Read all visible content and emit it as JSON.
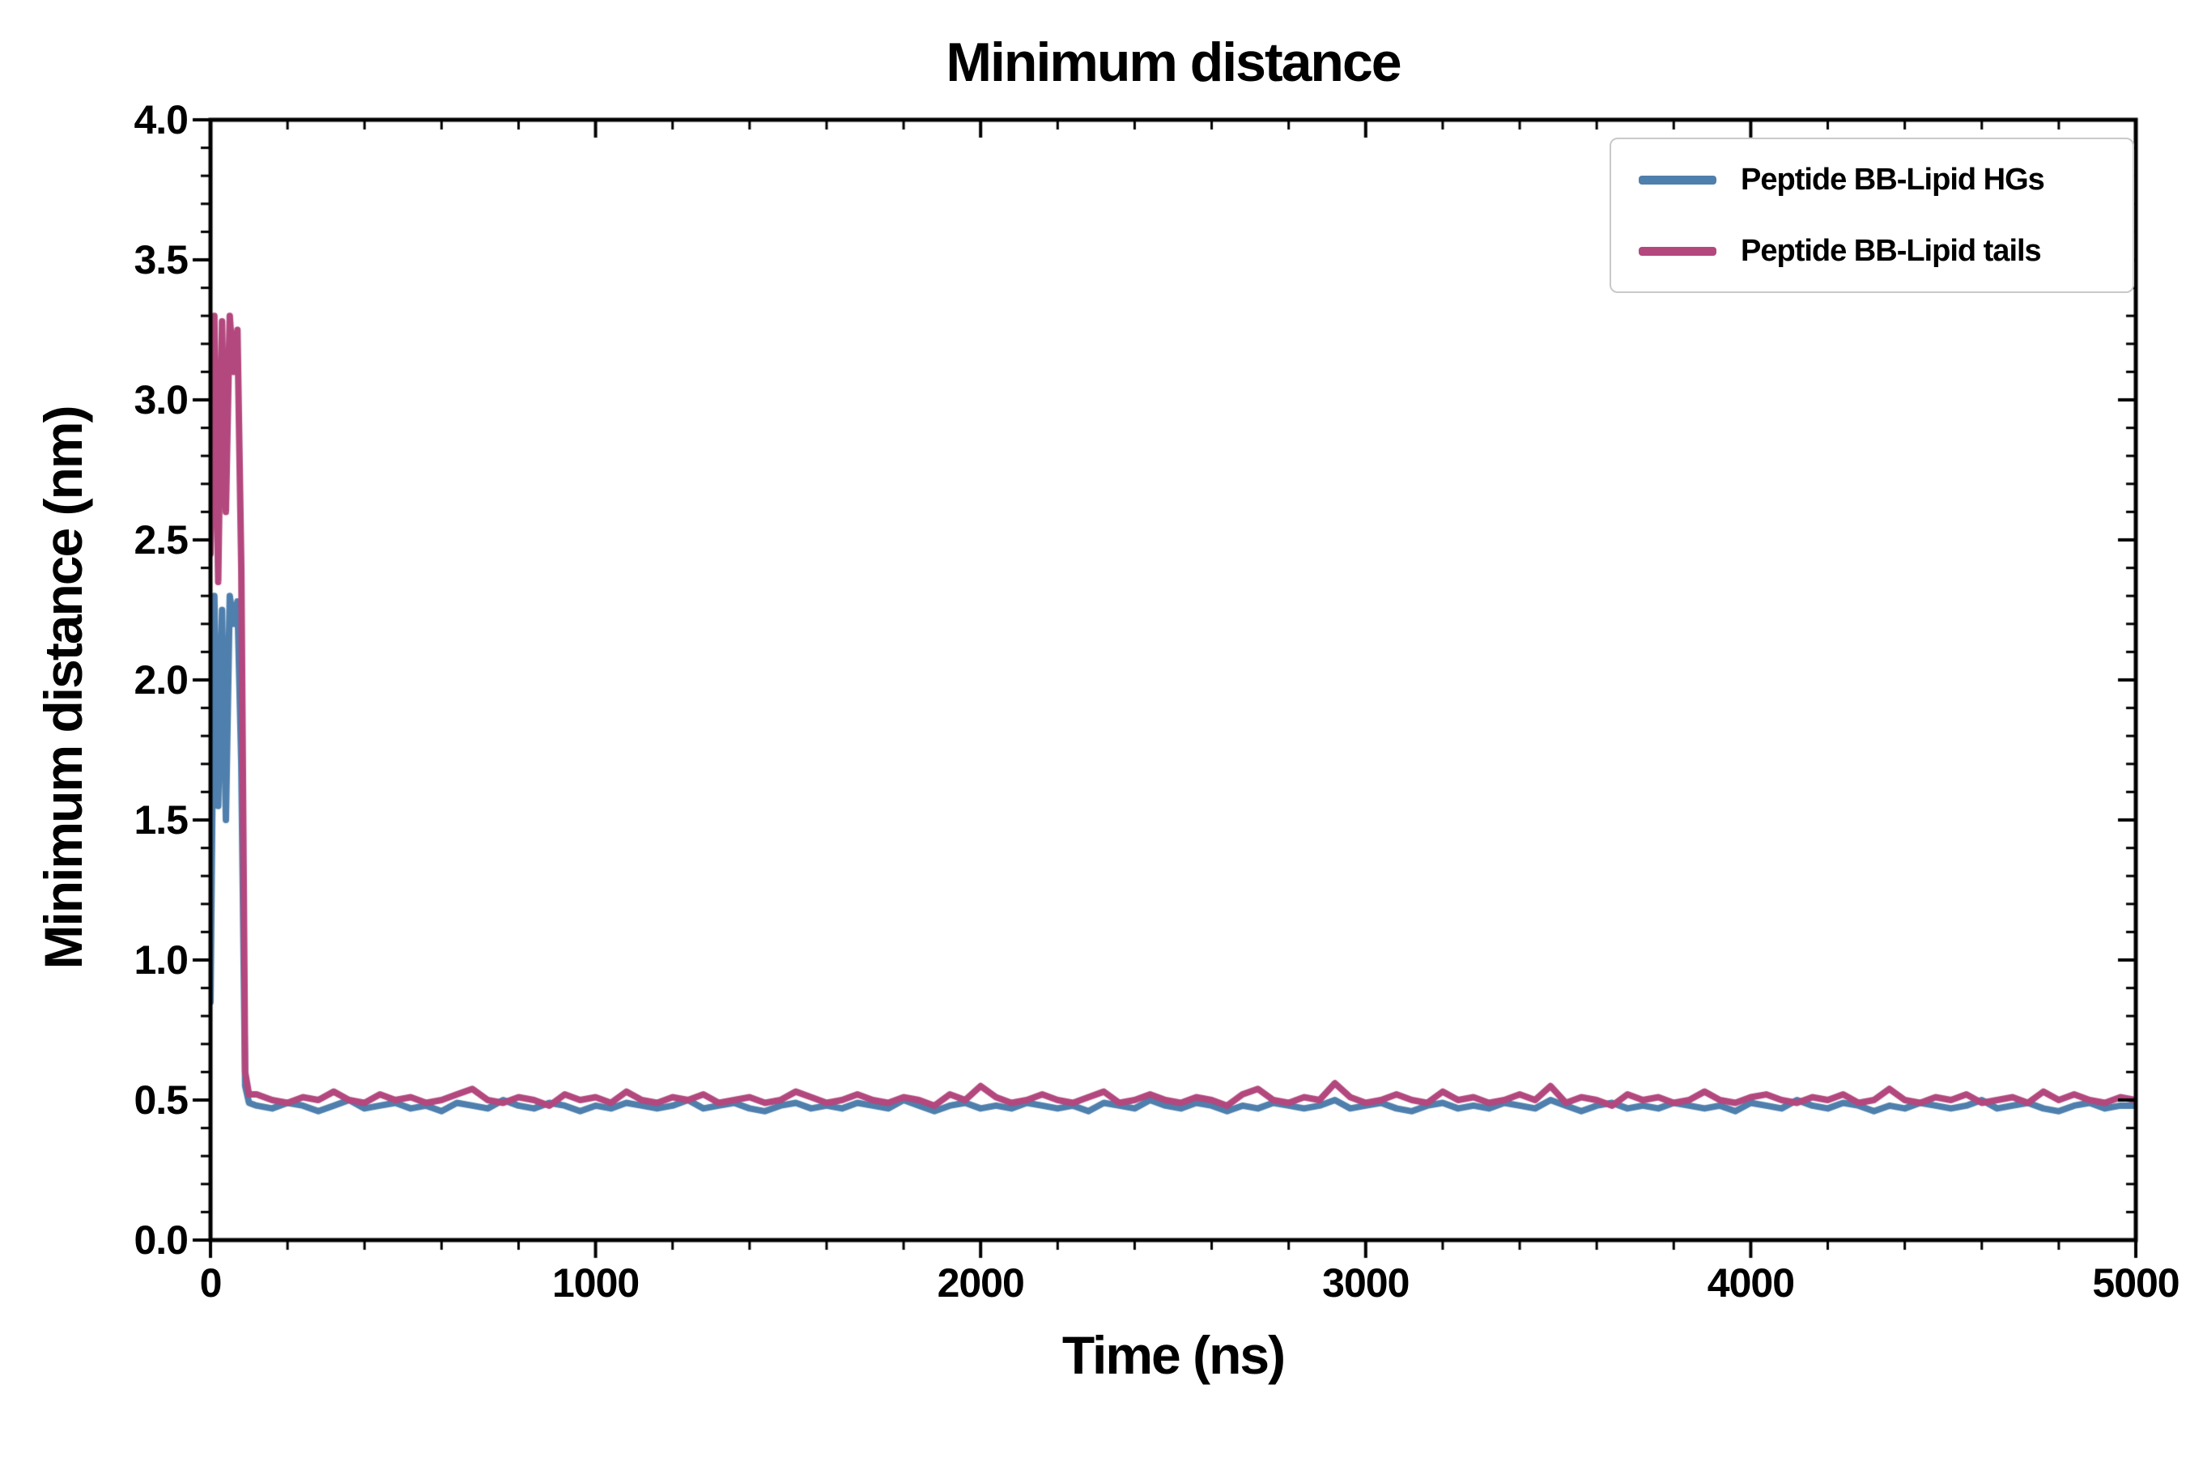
{
  "chart_data": {
    "type": "line",
    "title": "Minimum distance",
    "xlabel": "Time (ns)",
    "ylabel": "Minimum distance (nm)",
    "xlim": [
      0,
      5000
    ],
    "ylim": [
      0.0,
      4.0
    ],
    "grid": false,
    "legend_position": "upper right",
    "axis_color": "#000000",
    "background": "#ffffff",
    "legend_border_color": "#c9c9c9",
    "xticks": {
      "values": [
        0,
        1000,
        2000,
        3000,
        4000,
        5000
      ],
      "labels": [
        "0",
        "1000",
        "2000",
        "3000",
        "4000",
        "5000"
      ]
    },
    "yticks": {
      "values": [
        0,
        0.5,
        1,
        1.5,
        2,
        2.5,
        3,
        3.5,
        4
      ],
      "labels": [
        "0.0",
        "0.5",
        "1.0",
        "1.5",
        "2.0",
        "2.5",
        "3.0",
        "3.5",
        "4.0"
      ]
    },
    "x_minor_step": 200,
    "y_minor_step": 0.1,
    "x": [
      0,
      10,
      20,
      30,
      40,
      50,
      60,
      70,
      80,
      90,
      100,
      120,
      160,
      200,
      240,
      280,
      320,
      360,
      400,
      440,
      480,
      520,
      560,
      600,
      640,
      680,
      720,
      760,
      800,
      840,
      880,
      920,
      960,
      1000,
      1040,
      1080,
      1120,
      1160,
      1200,
      1240,
      1280,
      1320,
      1360,
      1400,
      1440,
      1480,
      1520,
      1560,
      1600,
      1640,
      1680,
      1720,
      1760,
      1800,
      1840,
      1880,
      1920,
      1960,
      2000,
      2040,
      2080,
      2120,
      2160,
      2200,
      2240,
      2280,
      2320,
      2360,
      2400,
      2440,
      2480,
      2520,
      2560,
      2600,
      2640,
      2680,
      2720,
      2760,
      2800,
      2840,
      2880,
      2920,
      2960,
      3000,
      3040,
      3080,
      3120,
      3160,
      3200,
      3240,
      3280,
      3320,
      3360,
      3400,
      3440,
      3480,
      3520,
      3560,
      3600,
      3640,
      3680,
      3720,
      3760,
      3800,
      3840,
      3880,
      3920,
      3960,
      4000,
      4040,
      4080,
      4120,
      4160,
      4200,
      4240,
      4280,
      4320,
      4360,
      4400,
      4440,
      4480,
      4520,
      4560,
      4600,
      4640,
      4680,
      4720,
      4760,
      4800,
      4840,
      4880,
      4920,
      4960,
      5000
    ],
    "series": [
      {
        "name": "Peptide BB-Lipid HGs",
        "color": "#4f7fad",
        "values": [
          0.85,
          2.3,
          1.55,
          2.25,
          1.5,
          2.3,
          2.2,
          2.28,
          1.7,
          0.55,
          0.49,
          0.48,
          0.47,
          0.49,
          0.48,
          0.46,
          0.48,
          0.5,
          0.47,
          0.48,
          0.49,
          0.47,
          0.48,
          0.46,
          0.49,
          0.48,
          0.47,
          0.5,
          0.48,
          0.47,
          0.49,
          0.48,
          0.46,
          0.48,
          0.47,
          0.49,
          0.48,
          0.47,
          0.48,
          0.5,
          0.47,
          0.48,
          0.49,
          0.47,
          0.46,
          0.48,
          0.49,
          0.47,
          0.48,
          0.47,
          0.49,
          0.48,
          0.47,
          0.5,
          0.48,
          0.46,
          0.48,
          0.49,
          0.47,
          0.48,
          0.47,
          0.49,
          0.48,
          0.47,
          0.48,
          0.46,
          0.49,
          0.48,
          0.47,
          0.5,
          0.48,
          0.47,
          0.49,
          0.48,
          0.46,
          0.48,
          0.47,
          0.49,
          0.48,
          0.47,
          0.48,
          0.5,
          0.47,
          0.48,
          0.49,
          0.47,
          0.46,
          0.48,
          0.49,
          0.47,
          0.48,
          0.47,
          0.49,
          0.48,
          0.47,
          0.5,
          0.48,
          0.46,
          0.48,
          0.49,
          0.47,
          0.48,
          0.47,
          0.49,
          0.48,
          0.47,
          0.48,
          0.46,
          0.49,
          0.48,
          0.47,
          0.5,
          0.48,
          0.47,
          0.49,
          0.48,
          0.46,
          0.48,
          0.47,
          0.49,
          0.48,
          0.47,
          0.48,
          0.5,
          0.47,
          0.48,
          0.49,
          0.47,
          0.46,
          0.48,
          0.49,
          0.47,
          0.48,
          0.48
        ]
      },
      {
        "name": "Peptide BB-Lipid tails",
        "color": "#b3487e",
        "values": [
          2.45,
          3.3,
          2.35,
          3.28,
          2.6,
          3.3,
          3.1,
          3.25,
          2.4,
          0.6,
          0.52,
          0.52,
          0.5,
          0.49,
          0.51,
          0.5,
          0.53,
          0.5,
          0.49,
          0.52,
          0.5,
          0.51,
          0.49,
          0.5,
          0.52,
          0.54,
          0.5,
          0.49,
          0.51,
          0.5,
          0.48,
          0.52,
          0.5,
          0.51,
          0.49,
          0.53,
          0.5,
          0.49,
          0.51,
          0.5,
          0.52,
          0.49,
          0.5,
          0.51,
          0.49,
          0.5,
          0.53,
          0.51,
          0.49,
          0.5,
          0.52,
          0.5,
          0.49,
          0.51,
          0.5,
          0.48,
          0.52,
          0.5,
          0.55,
          0.51,
          0.49,
          0.5,
          0.52,
          0.5,
          0.49,
          0.51,
          0.53,
          0.49,
          0.5,
          0.52,
          0.5,
          0.49,
          0.51,
          0.5,
          0.48,
          0.52,
          0.54,
          0.5,
          0.49,
          0.51,
          0.5,
          0.56,
          0.51,
          0.49,
          0.5,
          0.52,
          0.5,
          0.49,
          0.53,
          0.5,
          0.51,
          0.49,
          0.5,
          0.52,
          0.5,
          0.55,
          0.49,
          0.51,
          0.5,
          0.48,
          0.52,
          0.5,
          0.51,
          0.49,
          0.5,
          0.53,
          0.5,
          0.49,
          0.51,
          0.52,
          0.5,
          0.49,
          0.51,
          0.5,
          0.52,
          0.49,
          0.5,
          0.54,
          0.5,
          0.49,
          0.51,
          0.5,
          0.52,
          0.49,
          0.5,
          0.51,
          0.49,
          0.53,
          0.5,
          0.52,
          0.5,
          0.49,
          0.51,
          0.5
        ]
      }
    ]
  }
}
